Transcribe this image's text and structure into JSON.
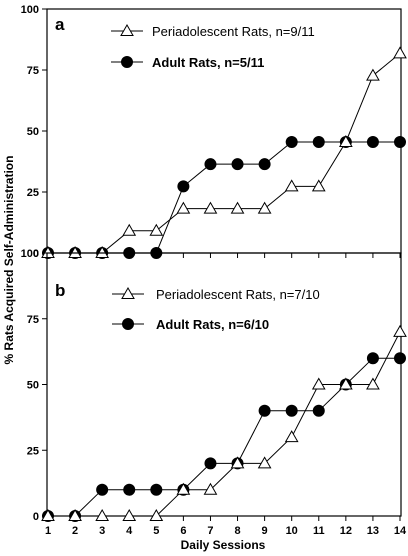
{
  "chart_data": [
    {
      "type": "line",
      "panel_label": "a",
      "xlabel": "",
      "ylabel": "",
      "x": [
        1,
        2,
        3,
        4,
        5,
        6,
        7,
        8,
        9,
        10,
        11,
        12,
        13,
        14
      ],
      "xlim": [
        1,
        14
      ],
      "ylim": [
        0,
        100
      ],
      "y_ticks": [
        0,
        25,
        50,
        75,
        100
      ],
      "legend_position": "top-right",
      "series": [
        {
          "name": "Periadolescent Rats, n=9/11",
          "marker": "open-triangle",
          "values": [
            0,
            0,
            0,
            9.1,
            9.1,
            18.2,
            18.2,
            18.2,
            18.2,
            27.3,
            27.3,
            45.5,
            72.7,
            81.8
          ]
        },
        {
          "name": "Adult Rats, n=5/11",
          "marker": "filled-circle",
          "values": [
            0,
            0,
            0,
            0,
            0,
            27.3,
            36.4,
            36.4,
            36.4,
            45.5,
            45.5,
            45.5,
            45.5,
            45.5
          ]
        }
      ]
    },
    {
      "type": "line",
      "panel_label": "b",
      "xlabel": "Daily Sessions",
      "ylabel": "",
      "x": [
        1,
        2,
        3,
        4,
        5,
        6,
        7,
        8,
        9,
        10,
        11,
        12,
        13,
        14
      ],
      "xlim": [
        1,
        14
      ],
      "ylim": [
        0,
        100
      ],
      "y_ticks": [
        0,
        25,
        50,
        75,
        100
      ],
      "legend_position": "top-right",
      "series": [
        {
          "name": "Periadolescent Rats, n=7/10",
          "marker": "open-triangle",
          "values": [
            0,
            0,
            0,
            0,
            0,
            10,
            10,
            20,
            20,
            30,
            50,
            50,
            50,
            70
          ]
        },
        {
          "name": "Adult Rats, n=6/10",
          "marker": "filled-circle",
          "values": [
            0,
            0,
            10,
            10,
            10,
            10,
            20,
            20,
            40,
            40,
            40,
            50,
            60,
            60
          ]
        }
      ]
    }
  ],
  "shared_ylabel": "% Rats Acquired Self-Administration",
  "shared_xlabel": "Daily Sessions"
}
